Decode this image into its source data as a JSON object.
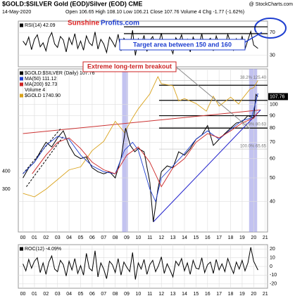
{
  "chart_data": [
    {
      "type": "line",
      "ylim": [
        10,
        90
      ],
      "yticks": [
        30,
        70
      ],
      "xlim": [
        1999.6,
        2021.2
      ],
      "hlines": [
        80,
        68
      ],
      "x": [
        2000,
        2000.25,
        2000.5,
        2000.75,
        2001,
        2001.25,
        2001.5,
        2001.75,
        2002,
        2002.25,
        2002.5,
        2002.75,
        2003,
        2003.25,
        2003.5,
        2003.75,
        2004,
        2004.25,
        2004.5,
        2004.75,
        2005,
        2005.25,
        2005.5,
        2005.75,
        2006,
        2006.25,
        2006.5,
        2006.75,
        2007,
        2007.25,
        2007.5,
        2007.75,
        2008,
        2008.25,
        2008.5,
        2008.75,
        2009,
        2009.25,
        2009.5,
        2009.75,
        2010,
        2010.25,
        2010.5,
        2010.75,
        2011,
        2011.25,
        2011.5,
        2011.75,
        2012,
        2012.25,
        2012.5,
        2012.75,
        2013,
        2013.25,
        2013.5,
        2013.75,
        2014,
        2014.25,
        2014.5,
        2014.75,
        2015,
        2015.25,
        2015.5,
        2015.75,
        2016,
        2016.25,
        2016.5,
        2016.75,
        2017,
        2017.25,
        2017.5,
        2017.75,
        2018,
        2018.25,
        2018.5,
        2018.75,
        2019,
        2019.25,
        2019.5,
        2019.75,
        2020,
        2020.37
      ],
      "series": [
        {
          "name": "RSI(14) 42.09",
          "color": "#000000",
          "values": [
            55,
            48,
            62,
            40,
            58,
            66,
            45,
            52,
            38,
            60,
            70,
            50,
            44,
            63,
            57,
            36,
            61,
            49,
            68,
            42,
            55,
            39,
            64,
            52,
            47,
            71,
            41,
            58,
            50,
            35,
            62,
            54,
            45,
            67,
            38,
            60,
            52,
            44,
            74,
            30,
            59,
            48,
            65,
            37,
            56,
            63,
            42,
            51,
            69,
            40,
            57,
            46,
            33,
            61,
            53,
            66,
            44,
            58,
            36,
            62,
            50,
            47,
            68,
            41,
            55,
            60,
            38,
            64,
            49,
            56,
            43,
            67,
            52,
            39,
            59,
            46,
            63,
            41,
            57,
            72,
            48,
            42.09
          ]
        }
      ],
      "annotations": {
        "sunshine": "Sunshine",
        "profits": "Profits.com",
        "target": "Target area between 150 and 160"
      }
    },
    {
      "type": "line",
      "title": "$GOLD:$SILVER Gold (EOD)/Silver (EOD) CME",
      "date": "14-May-2020",
      "quote": "Open 106.65 High 108.10 Low 106.21 Close 107.76 Volume 4 Chg -1.77 (-1.62%)",
      "source": "@ StockCharts.com",
      "log": true,
      "ylim": [
        30,
        140
      ],
      "yticks": [
        40,
        50,
        60,
        70,
        80,
        90,
        100
      ],
      "y2lim": [
        150,
        2100
      ],
      "y2ticks": [
        300,
        400
      ],
      "xlim": [
        1999.6,
        2021.2
      ],
      "xticks": [
        {
          "value": 2000,
          "label": "00"
        },
        {
          "value": 2001,
          "label": "01"
        },
        {
          "value": 2002,
          "label": "02"
        },
        {
          "value": 2003,
          "label": "03"
        },
        {
          "value": 2004,
          "label": "04"
        },
        {
          "value": 2005,
          "label": "05"
        },
        {
          "value": 2006,
          "label": "06"
        },
        {
          "value": 2007,
          "label": "07"
        },
        {
          "value": 2008,
          "label": "08"
        },
        {
          "value": 2009,
          "label": "09"
        },
        {
          "value": 2010,
          "label": "10"
        },
        {
          "value": 2011,
          "label": "11"
        },
        {
          "value": 2012,
          "label": "12"
        },
        {
          "value": 2013,
          "label": "13"
        },
        {
          "value": 2014,
          "label": "14"
        },
        {
          "value": 2015,
          "label": "15"
        },
        {
          "value": 2016,
          "label": "16"
        },
        {
          "value": 2017,
          "label": "17"
        },
        {
          "value": 2018,
          "label": "18"
        },
        {
          "value": 2019,
          "label": "19"
        },
        {
          "value": 2020,
          "label": "20"
        },
        {
          "value": 2021,
          "label": "21"
        }
      ],
      "volume_label": "Volume 4",
      "annotation": "Extreme long-term breakout",
      "highlights": [
        [
          2008.6,
          2009.1
        ],
        [
          2019.6,
          2020.3
        ]
      ],
      "hlines": [
        120,
        104,
        90,
        80
      ],
      "hline_start": 2011.8,
      "fib": [
        {
          "value": 125.4,
          "label": "38.2% 125.40"
        },
        {
          "value": 80.63,
          "label": "61.8% 80.63"
        },
        {
          "value": 65.65,
          "label": "100.0% 65.65"
        }
      ],
      "trendlines": [
        {
          "color": "#cc3333",
          "x": [
            2000,
            2020.6
          ],
          "y": [
            76,
            95
          ]
        },
        {
          "color": "#2222cc",
          "x": [
            2011.3,
            2020.6
          ],
          "y": [
            33,
            95
          ]
        },
        {
          "color": "#000000",
          "dash": true,
          "x": [
            2000,
            2003.3
          ],
          "y": [
            52,
            80
          ]
        },
        {
          "color": "#000000",
          "dash": true,
          "x": [
            2000.3,
            2003.5
          ],
          "y": [
            46,
            74
          ]
        }
      ],
      "series": [
        {
          "name": "$GOLD:$SILVER (Daily) 107.76",
          "color": "#000000",
          "x": [
            2000,
            2000.5,
            2001,
            2001.5,
            2002,
            2002.5,
            2003,
            2003.5,
            2004,
            2004.5,
            2005,
            2005.5,
            2006,
            2006.5,
            2007,
            2007.5,
            2008,
            2008.5,
            2008.9,
            2009.3,
            2009.7,
            2010,
            2010.5,
            2011,
            2011.3,
            2011.7,
            2012,
            2012.5,
            2013,
            2013.5,
            2014,
            2014.5,
            2015,
            2015.5,
            2016,
            2016.5,
            2017,
            2017.5,
            2018,
            2018.5,
            2019,
            2019.5,
            2020,
            2020.2,
            2020.37
          ],
          "values": [
            50,
            55,
            58,
            64,
            70,
            67,
            73,
            78,
            68,
            62,
            60,
            61,
            55,
            53,
            52,
            53,
            50,
            60,
            80,
            68,
            64,
            66,
            64,
            48,
            33,
            45,
            53,
            56,
            55,
            64,
            62,
            66,
            72,
            75,
            82,
            68,
            72,
            76,
            80,
            84,
            85,
            90,
            88,
            110,
            107.76
          ]
        },
        {
          "name": "MA(50) 111.12",
          "color": "#1f3fd0",
          "x": [
            2000,
            2001,
            2002,
            2003,
            2004,
            2005,
            2006,
            2007,
            2008,
            2008.8,
            2009.5,
            2010,
            2011,
            2011.5,
            2012,
            2013,
            2014,
            2015,
            2016,
            2017,
            2018,
            2019,
            2019.8,
            2020.37
          ],
          "values": [
            52,
            58,
            68,
            74,
            72,
            62,
            56,
            53,
            52,
            65,
            70,
            65,
            45,
            40,
            50,
            56,
            63,
            72,
            78,
            72,
            79,
            86,
            88,
            111.12
          ]
        },
        {
          "name": "MA(200) 92.73",
          "color": "#cc2222",
          "x": [
            2000.8,
            2002,
            2003,
            2004,
            2005,
            2006,
            2007,
            2008,
            2009,
            2010,
            2011,
            2012,
            2013,
            2014,
            2015,
            2016,
            2017,
            2018,
            2019,
            2020,
            2020.37
          ],
          "values": [
            52,
            62,
            70,
            73,
            66,
            58,
            54,
            52,
            62,
            67,
            58,
            46,
            55,
            60,
            70,
            76,
            73,
            78,
            84,
            88,
            92.73
          ]
        },
        {
          "name": "$GOLD 1740.90",
          "color": "#d9a21b",
          "axis": "y2",
          "x": [
            2000,
            2001,
            2002,
            2003,
            2004,
            2005,
            2006,
            2007,
            2008,
            2008.8,
            2009.5,
            2010,
            2011,
            2011.7,
            2012,
            2013,
            2013.5,
            2014,
            2015,
            2015.9,
            2016.5,
            2017,
            2018,
            2018.7,
            2019,
            2019.7,
            2020,
            2020.37
          ],
          "values": [
            280,
            265,
            300,
            350,
            410,
            430,
            560,
            650,
            900,
            750,
            950,
            1100,
            1400,
            1850,
            1650,
            1600,
            1250,
            1300,
            1200,
            1060,
            1350,
            1150,
            1330,
            1190,
            1290,
            1520,
            1550,
            1740.9
          ]
        }
      ]
    },
    {
      "type": "line",
      "ylim": [
        -25,
        25
      ],
      "yticks": [
        -20,
        -10,
        0,
        10,
        20
      ],
      "xlim": [
        1999.6,
        2021.2
      ],
      "xticks": [
        {
          "value": 2000,
          "label": "00"
        },
        {
          "value": 2001,
          "label": "01"
        },
        {
          "value": 2002,
          "label": "02"
        },
        {
          "value": 2003,
          "label": "03"
        },
        {
          "value": 2004,
          "label": "04"
        },
        {
          "value": 2005,
          "label": "05"
        },
        {
          "value": 2006,
          "label": "06"
        },
        {
          "value": 2007,
          "label": "07"
        },
        {
          "value": 2008,
          "label": "08"
        },
        {
          "value": 2009,
          "label": "09"
        },
        {
          "value": 2010,
          "label": "10"
        },
        {
          "value": 2011,
          "label": "11"
        },
        {
          "value": 2012,
          "label": "12"
        },
        {
          "value": 2013,
          "label": "13"
        },
        {
          "value": 2014,
          "label": "14"
        },
        {
          "value": 2015,
          "label": "15"
        },
        {
          "value": 2016,
          "label": "16"
        },
        {
          "value": 2017,
          "label": "17"
        },
        {
          "value": 2018,
          "label": "18"
        },
        {
          "value": 2019,
          "label": "19"
        },
        {
          "value": 2020,
          "label": "20"
        },
        {
          "value": 2021,
          "label": "21"
        }
      ],
      "x": [
        2000,
        2000.25,
        2000.5,
        2000.75,
        2001,
        2001.25,
        2001.5,
        2001.75,
        2002,
        2002.25,
        2002.5,
        2002.75,
        2003,
        2003.25,
        2003.5,
        2003.75,
        2004,
        2004.25,
        2004.5,
        2004.75,
        2005,
        2005.25,
        2005.5,
        2005.75,
        2006,
        2006.25,
        2006.5,
        2006.75,
        2007,
        2007.25,
        2007.5,
        2007.75,
        2008,
        2008.25,
        2008.5,
        2008.75,
        2009,
        2009.25,
        2009.5,
        2009.75,
        2010,
        2010.25,
        2010.5,
        2010.75,
        2011,
        2011.25,
        2011.5,
        2011.75,
        2012,
        2012.25,
        2012.5,
        2012.75,
        2013,
        2013.25,
        2013.5,
        2013.75,
        2014,
        2014.25,
        2014.5,
        2014.75,
        2015,
        2015.25,
        2015.5,
        2015.75,
        2016,
        2016.25,
        2016.5,
        2016.75,
        2017,
        2017.25,
        2017.5,
        2017.75,
        2018,
        2018.25,
        2018.5,
        2018.75,
        2019,
        2019.25,
        2019.5,
        2019.75,
        2020,
        2020.37
      ],
      "series": [
        {
          "name": "ROC(12) -4.09%",
          "color": "#000000",
          "values": [
            3,
            -5,
            8,
            -2,
            6,
            10,
            -7,
            4,
            -9,
            5,
            12,
            -3,
            -6,
            7,
            2,
            -11,
            6,
            -4,
            9,
            -8,
            1,
            -10,
            15,
            -2,
            -5,
            18,
            -12,
            4,
            -3,
            -14,
            6,
            2,
            -7,
            9,
            -10,
            5,
            -1,
            -6,
            16,
            -15,
            4,
            -3,
            8,
            -9,
            2,
            7,
            -6,
            1,
            11,
            -8,
            3,
            -4,
            -12,
            6,
            1,
            9,
            -5,
            4,
            -9,
            7,
            -2,
            -3,
            10,
            -7,
            2,
            5,
            -8,
            8,
            -4,
            3,
            -6,
            9,
            0,
            -8,
            5,
            -3,
            7,
            -5,
            4,
            22,
            6,
            -4.09
          ]
        }
      ]
    }
  ]
}
